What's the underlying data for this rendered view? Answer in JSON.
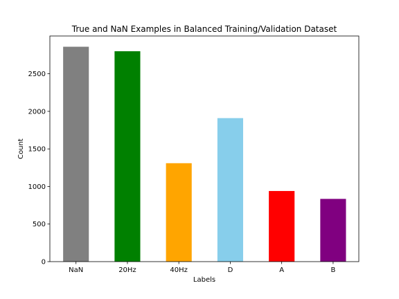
{
  "chart_data": {
    "type": "bar",
    "title": "True and NaN Examples in Balanced Training/Validation Dataset",
    "xlabel": "Labels",
    "ylabel": "Count",
    "categories": [
      "NaN",
      "20Hz",
      "40Hz",
      "D",
      "A",
      "B"
    ],
    "values": [
      2860,
      2800,
      1310,
      1910,
      940,
      835
    ],
    "colors": [
      "#808080",
      "#008000",
      "#ffa500",
      "#87ceeb",
      "#ff0000",
      "#800080"
    ],
    "ylim": [
      0,
      3003
    ],
    "yticks": [
      0,
      500,
      1000,
      1500,
      2000,
      2500
    ],
    "grid": false,
    "legend": "none"
  }
}
